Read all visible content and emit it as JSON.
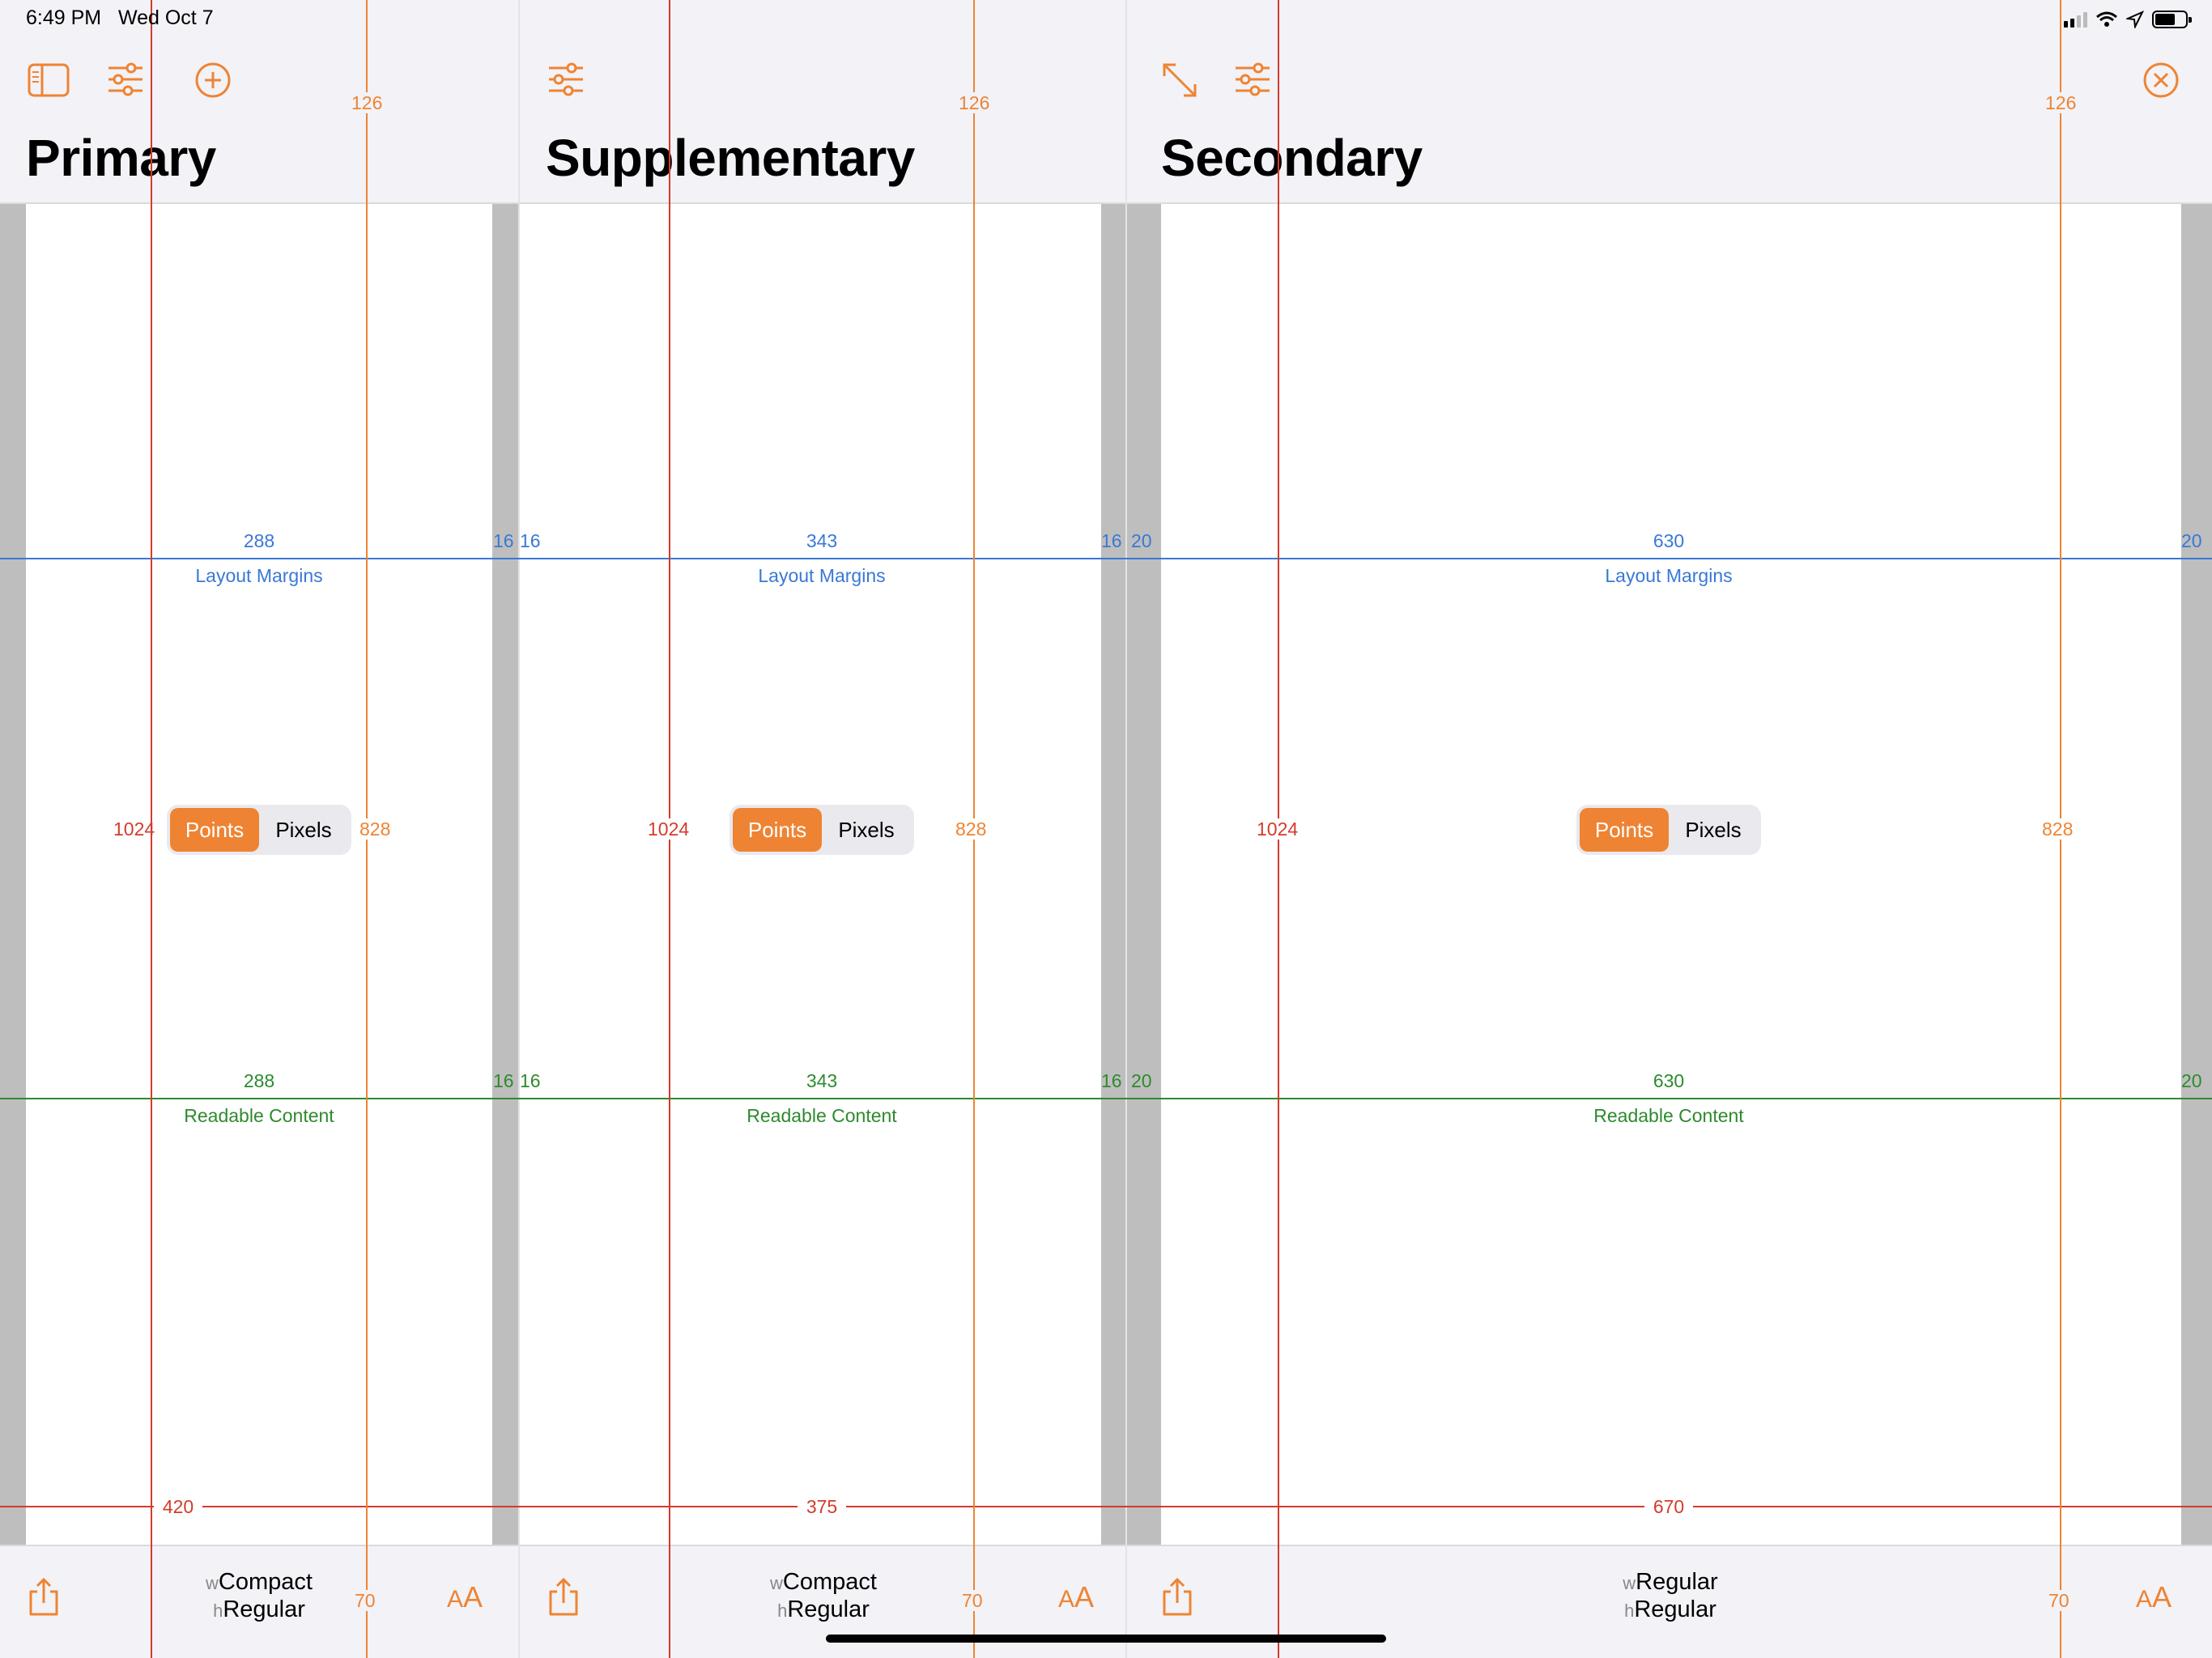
{
  "status_bar": {
    "time": "6:49 PM",
    "date": "Wed Oct 7"
  },
  "accent_color": "#ee8433",
  "colors": {
    "layout_margins": "#3a78d6",
    "readable_content": "#2e8a2e",
    "view_bounds": "#d43b2c",
    "safe_area": "#ee8433"
  },
  "columns": [
    {
      "title": "Primary",
      "toolbar_icons": [
        "sidebar-icon",
        "sliders-icon",
        "add-icon"
      ],
      "safe_area_top": "126",
      "safe_area_bottom": "70",
      "height": "1024",
      "safe_area_height": "828",
      "layout_margins": {
        "width": "288",
        "label": "Layout Margins",
        "leading": "",
        "trailing": "16"
      },
      "readable_content": {
        "width": "288",
        "label": "Readable Content",
        "leading": "",
        "trailing": "16"
      },
      "view_width": "420",
      "toggle": {
        "selected": "Points",
        "other": "Pixels"
      },
      "size_class": {
        "w": "Compact",
        "h": "Regular"
      },
      "footer_icons": [
        "share-icon",
        "text-size-icon"
      ]
    },
    {
      "title": "Supplementary",
      "toolbar_icons": [
        "sliders-icon"
      ],
      "safe_area_top": "126",
      "safe_area_bottom": "70",
      "height": "1024",
      "safe_area_height": "828",
      "layout_margins": {
        "width": "343",
        "label": "Layout Margins",
        "leading": "16",
        "trailing": "16"
      },
      "readable_content": {
        "width": "343",
        "label": "Readable Content",
        "leading": "16",
        "trailing": "16"
      },
      "view_width": "375",
      "toggle": {
        "selected": "Points",
        "other": "Pixels"
      },
      "size_class": {
        "w": "Compact",
        "h": "Regular"
      },
      "footer_icons": [
        "share-icon",
        "text-size-icon"
      ]
    },
    {
      "title": "Secondary",
      "toolbar_icons": [
        "expand-icon",
        "sliders-icon",
        "close-icon"
      ],
      "safe_area_top": "126",
      "safe_area_bottom": "70",
      "height": "1024",
      "safe_area_height": "828",
      "layout_margins": {
        "width": "630",
        "label": "Layout Margins",
        "leading": "20",
        "trailing": "20"
      },
      "readable_content": {
        "width": "630",
        "label": "Readable Content",
        "leading": "20",
        "trailing": "20"
      },
      "view_width": "670",
      "toggle": {
        "selected": "Points",
        "other": "Pixels"
      },
      "size_class": {
        "w": "Regular",
        "h": "Regular"
      },
      "footer_icons": [
        "share-icon",
        "text-size-icon"
      ]
    }
  ],
  "text_size_glyph": {
    "small": "A",
    "large": "A"
  }
}
